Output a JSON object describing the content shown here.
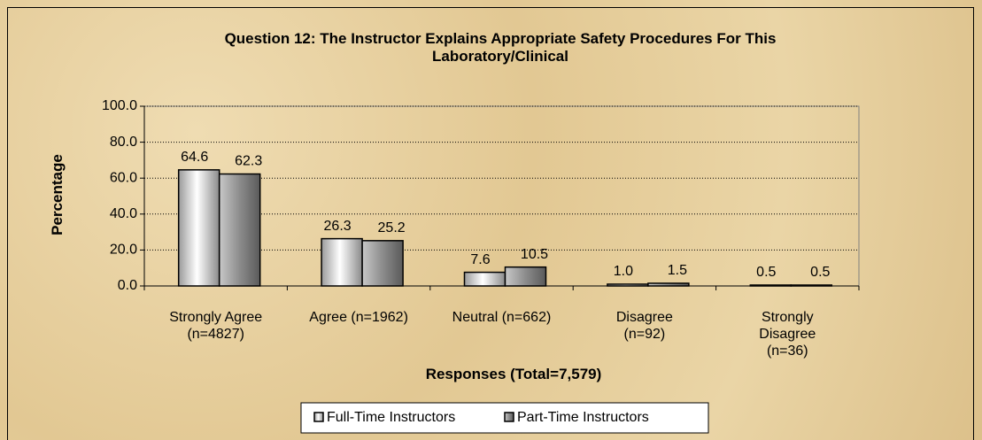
{
  "chart_data": {
    "type": "bar",
    "title": "Question 12:  The Instructor Explains Appropriate Safety Procedures For This\nLaboratory/Clinical",
    "x_label": "Responses (Total=7,579)",
    "y_label": "Percentage",
    "categories": [
      "Strongly Agree\n(n=4827)",
      "Agree (n=1962)",
      "Neutral (n=662)",
      "Disagree\n(n=92)",
      "Strongly\nDisagree\n(n=36)"
    ],
    "series": [
      {
        "name": "Full-Time Instructors",
        "color": "#e0e0e0",
        "values": [
          64.6,
          26.3,
          7.6,
          1.0,
          0.5
        ],
        "value_labels": [
          "64.6",
          "26.3",
          "7.6",
          "1.0",
          "0.5"
        ]
      },
      {
        "name": "Part-Time Instructors",
        "color": "#808080",
        "values": [
          62.3,
          25.2,
          10.5,
          1.5,
          0.5
        ],
        "value_labels": [
          "62.3",
          "25.2",
          "10.5",
          "1.5",
          "0.5"
        ]
      }
    ],
    "ylim": [
      0,
      100
    ],
    "yticks": [
      {
        "value": 0,
        "label": "0.0"
      },
      {
        "value": 20,
        "label": "20.0"
      },
      {
        "value": 40,
        "label": "40.0"
      },
      {
        "value": 60,
        "label": "60.0"
      },
      {
        "value": 80,
        "label": "80.0"
      },
      {
        "value": 100,
        "label": "100.0"
      }
    ],
    "grid": true,
    "legend": "bottom"
  }
}
